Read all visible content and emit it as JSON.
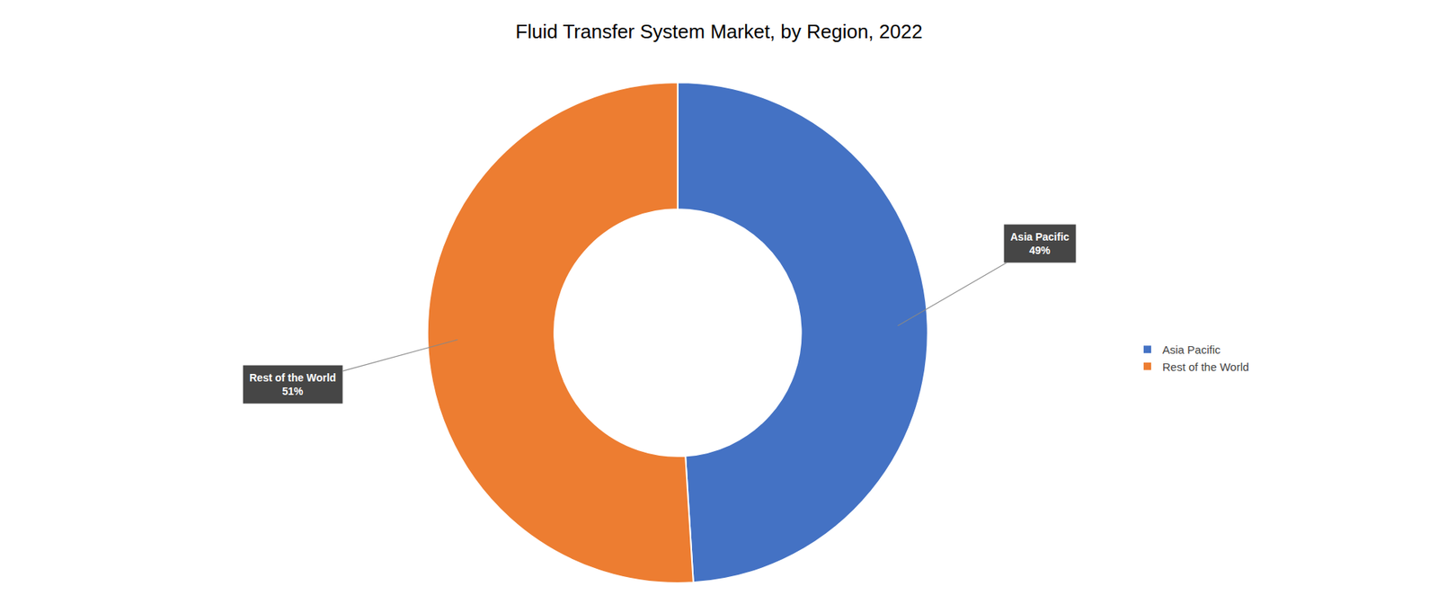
{
  "chart_data": {
    "type": "pie",
    "title": "Fluid Transfer System Market, by Region, 2022",
    "categories": [
      "Asia Pacific",
      "Rest of the World"
    ],
    "values": [
      49,
      51
    ],
    "colors": [
      "#4472C4",
      "#ED7D31"
    ],
    "annotations": [
      "Asia Pacific\n49%",
      "Rest of the World\n51%"
    ],
    "legend": "right"
  }
}
